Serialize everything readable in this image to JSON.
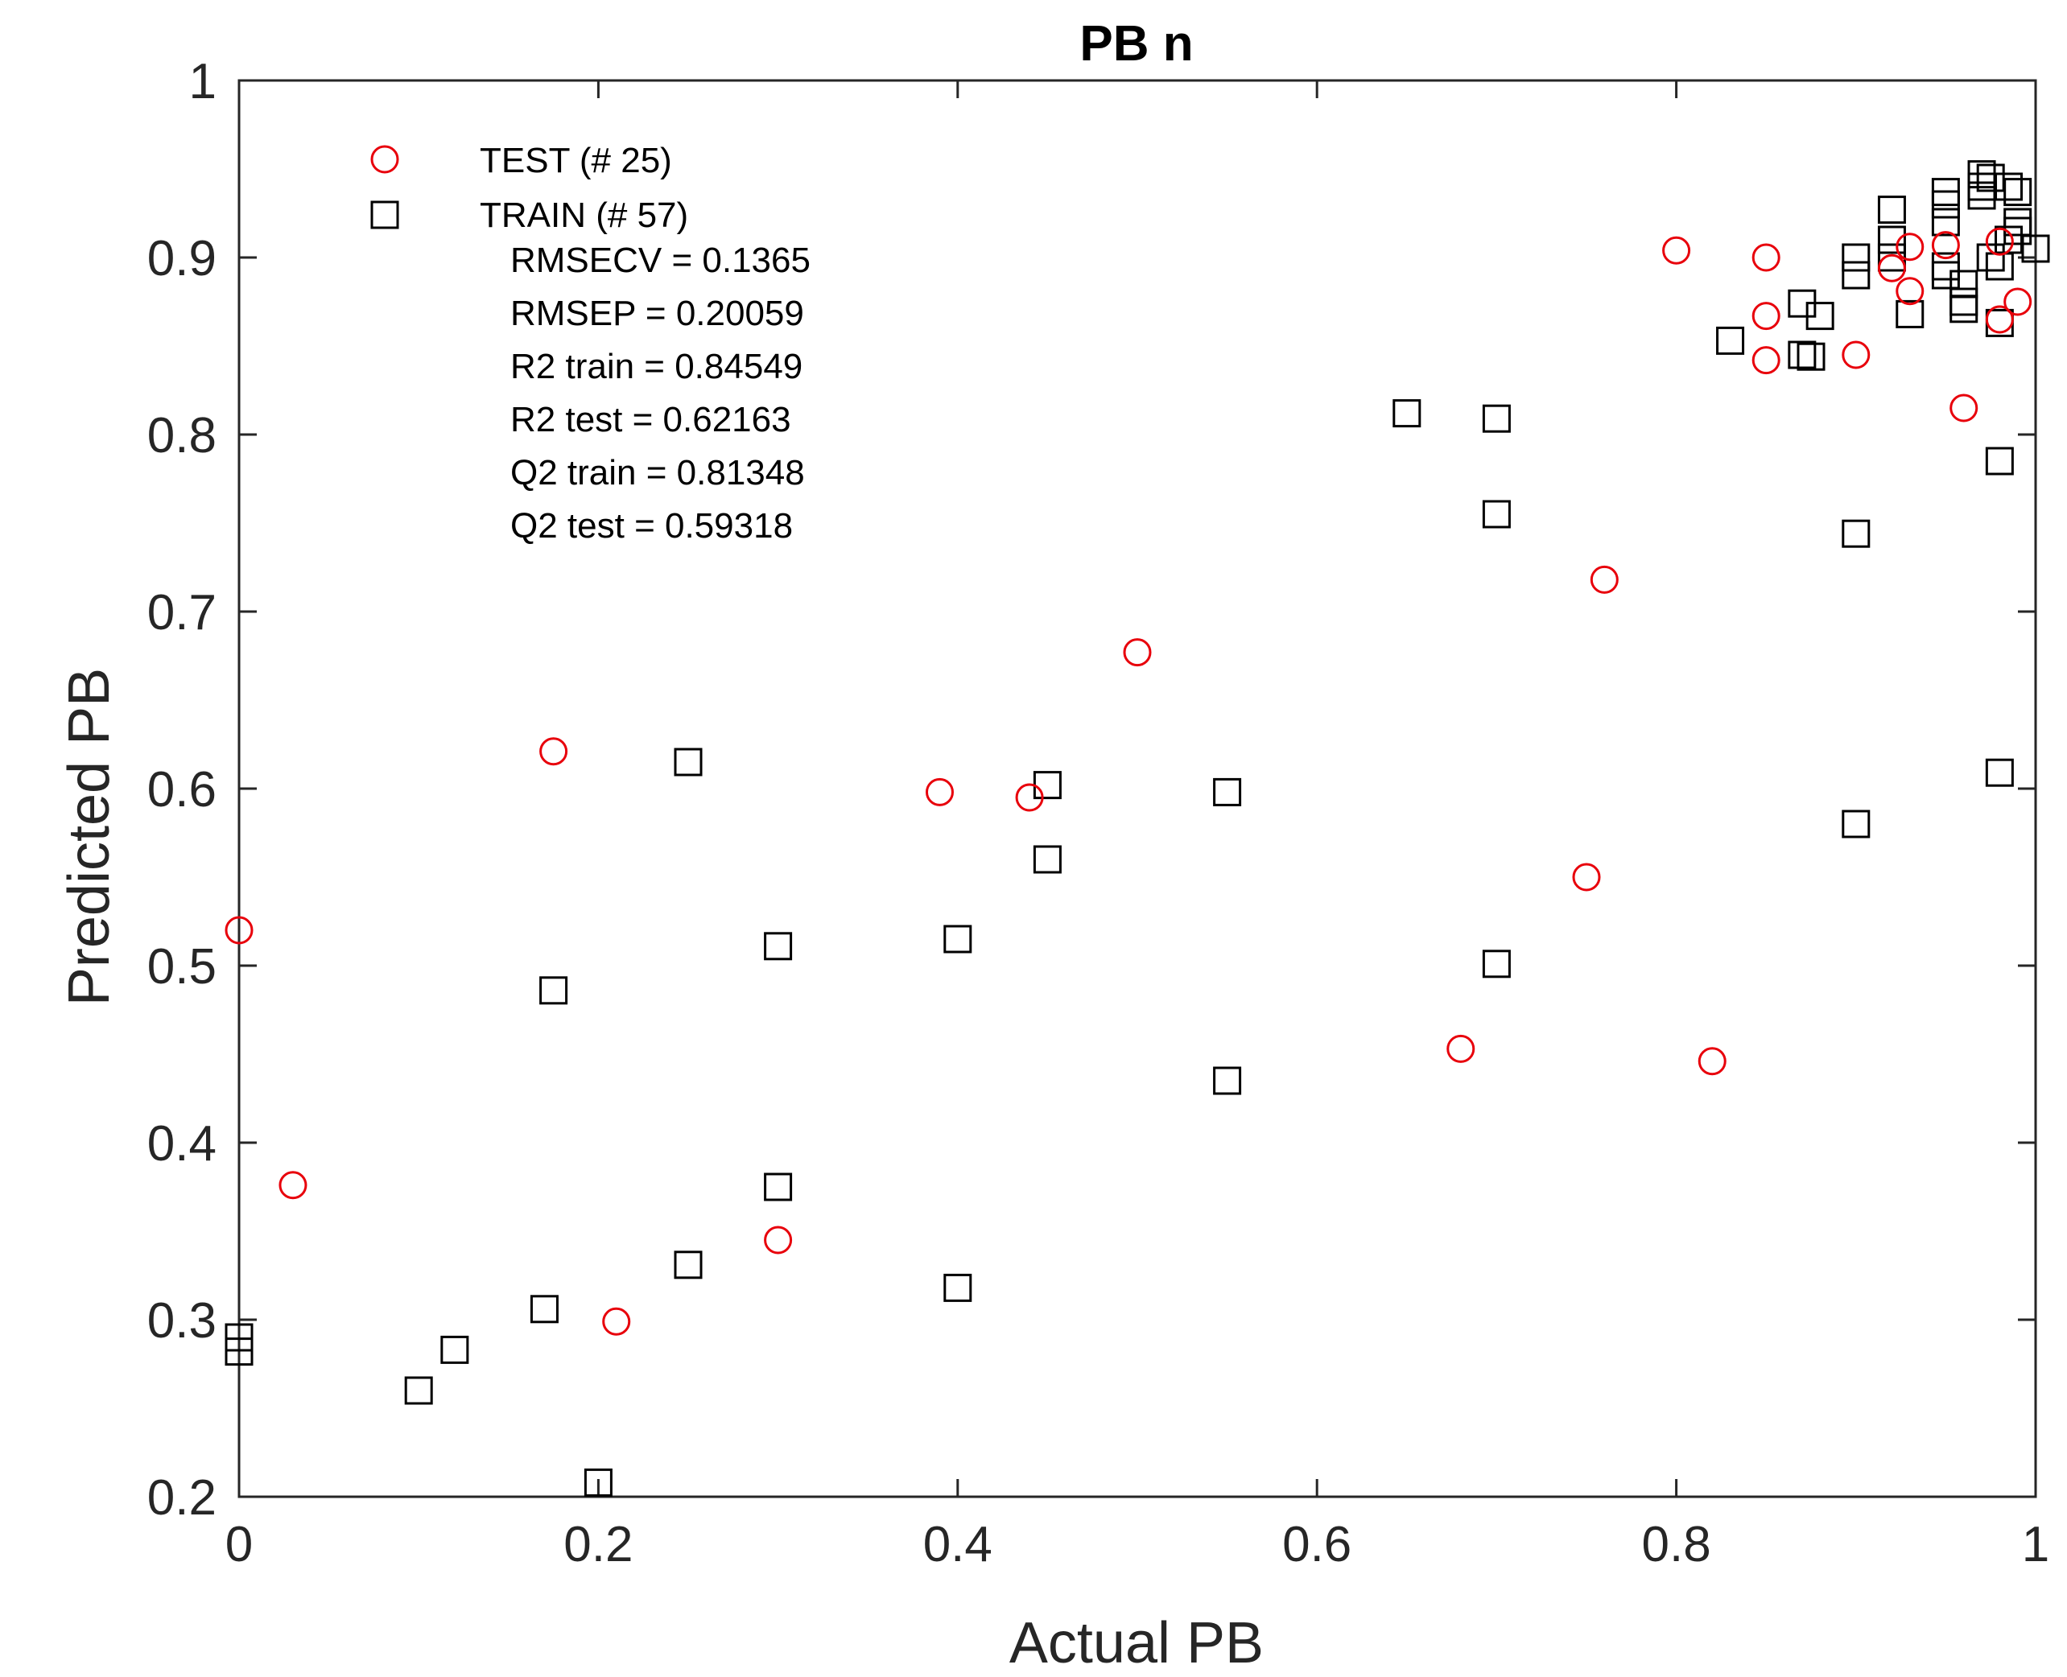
{
  "chart_data": {
    "type": "scatter",
    "title": "PB n",
    "xlabel": "Actual PB",
    "ylabel": "Predicted PB",
    "xlim": [
      0,
      1
    ],
    "ylim": [
      0.2,
      1
    ],
    "x_ticks": [
      "0",
      "0.2",
      "0.4",
      "0.6",
      "0.8",
      "1"
    ],
    "y_ticks": [
      "0.2",
      "0.3",
      "0.4",
      "0.5",
      "0.6",
      "0.7",
      "0.8",
      "0.9",
      "1"
    ],
    "legend_position": "top-left",
    "series": [
      {
        "name": "TEST (# 25)",
        "marker": "circle",
        "color": "#e8000b",
        "points": [
          [
            0.0,
            0.52
          ],
          [
            0.03,
            0.376
          ],
          [
            0.175,
            0.621
          ],
          [
            0.21,
            0.299
          ],
          [
            0.3,
            0.345
          ],
          [
            0.39,
            0.598
          ],
          [
            0.44,
            0.595
          ],
          [
            0.5,
            0.677
          ],
          [
            0.68,
            0.453
          ],
          [
            0.75,
            0.55
          ],
          [
            0.76,
            0.718
          ],
          [
            0.8,
            0.904
          ],
          [
            0.82,
            0.446
          ],
          [
            0.85,
            0.9
          ],
          [
            0.85,
            0.867
          ],
          [
            0.85,
            0.842
          ],
          [
            0.9,
            0.845
          ],
          [
            0.92,
            0.894
          ],
          [
            0.93,
            0.906
          ],
          [
            0.93,
            0.881
          ],
          [
            0.95,
            0.907
          ],
          [
            0.96,
            0.815
          ],
          [
            0.98,
            0.909
          ],
          [
            0.98,
            0.865
          ],
          [
            0.99,
            0.875
          ]
        ]
      },
      {
        "name": "TRAIN (# 57)",
        "marker": "square",
        "color": "#000000",
        "points": [
          [
            0.0,
            0.29
          ],
          [
            0.0,
            0.282
          ],
          [
            0.1,
            0.26
          ],
          [
            0.12,
            0.283
          ],
          [
            0.17,
            0.306
          ],
          [
            0.175,
            0.486
          ],
          [
            0.2,
            0.208
          ],
          [
            0.25,
            0.331
          ],
          [
            0.25,
            0.615
          ],
          [
            0.3,
            0.375
          ],
          [
            0.3,
            0.511
          ],
          [
            0.4,
            0.318
          ],
          [
            0.4,
            0.515
          ],
          [
            0.45,
            0.56
          ],
          [
            0.45,
            0.602
          ],
          [
            0.55,
            0.435
          ],
          [
            0.55,
            0.598
          ],
          [
            0.65,
            0.812
          ],
          [
            0.7,
            0.501
          ],
          [
            0.7,
            0.755
          ],
          [
            0.7,
            0.809
          ],
          [
            0.83,
            0.853
          ],
          [
            0.87,
            0.874
          ],
          [
            0.87,
            0.845
          ],
          [
            0.875,
            0.844
          ],
          [
            0.88,
            0.867
          ],
          [
            0.9,
            0.58
          ],
          [
            0.9,
            0.744
          ],
          [
            0.9,
            0.89
          ],
          [
            0.9,
            0.9
          ],
          [
            0.92,
            0.927
          ],
          [
            0.92,
            0.91
          ],
          [
            0.92,
            0.9
          ],
          [
            0.93,
            0.868
          ],
          [
            0.95,
            0.937
          ],
          [
            0.95,
            0.93
          ],
          [
            0.95,
            0.92
          ],
          [
            0.95,
            0.895
          ],
          [
            0.95,
            0.89
          ],
          [
            0.96,
            0.871
          ],
          [
            0.96,
            0.885
          ],
          [
            0.97,
            0.947
          ],
          [
            0.97,
            0.94
          ],
          [
            0.97,
            0.935
          ],
          [
            0.975,
            0.945
          ],
          [
            0.975,
            0.9
          ],
          [
            0.98,
            0.895
          ],
          [
            0.98,
            0.863
          ],
          [
            0.98,
            0.785
          ],
          [
            0.98,
            0.609
          ],
          [
            0.985,
            0.94
          ],
          [
            0.985,
            0.91
          ],
          [
            0.99,
            0.937
          ],
          [
            0.99,
            0.92
          ],
          [
            0.99,
            0.915
          ],
          [
            1.0,
            0.905
          ],
          [
            0.96,
            0.875
          ]
        ]
      }
    ],
    "annotations": [
      "RMSECV = 0.1365",
      "RMSEP = 0.20059",
      "R2 train = 0.84549",
      "R2 test = 0.62163",
      "Q2 train = 0.81348",
      "Q2 test = 0.59318"
    ]
  }
}
